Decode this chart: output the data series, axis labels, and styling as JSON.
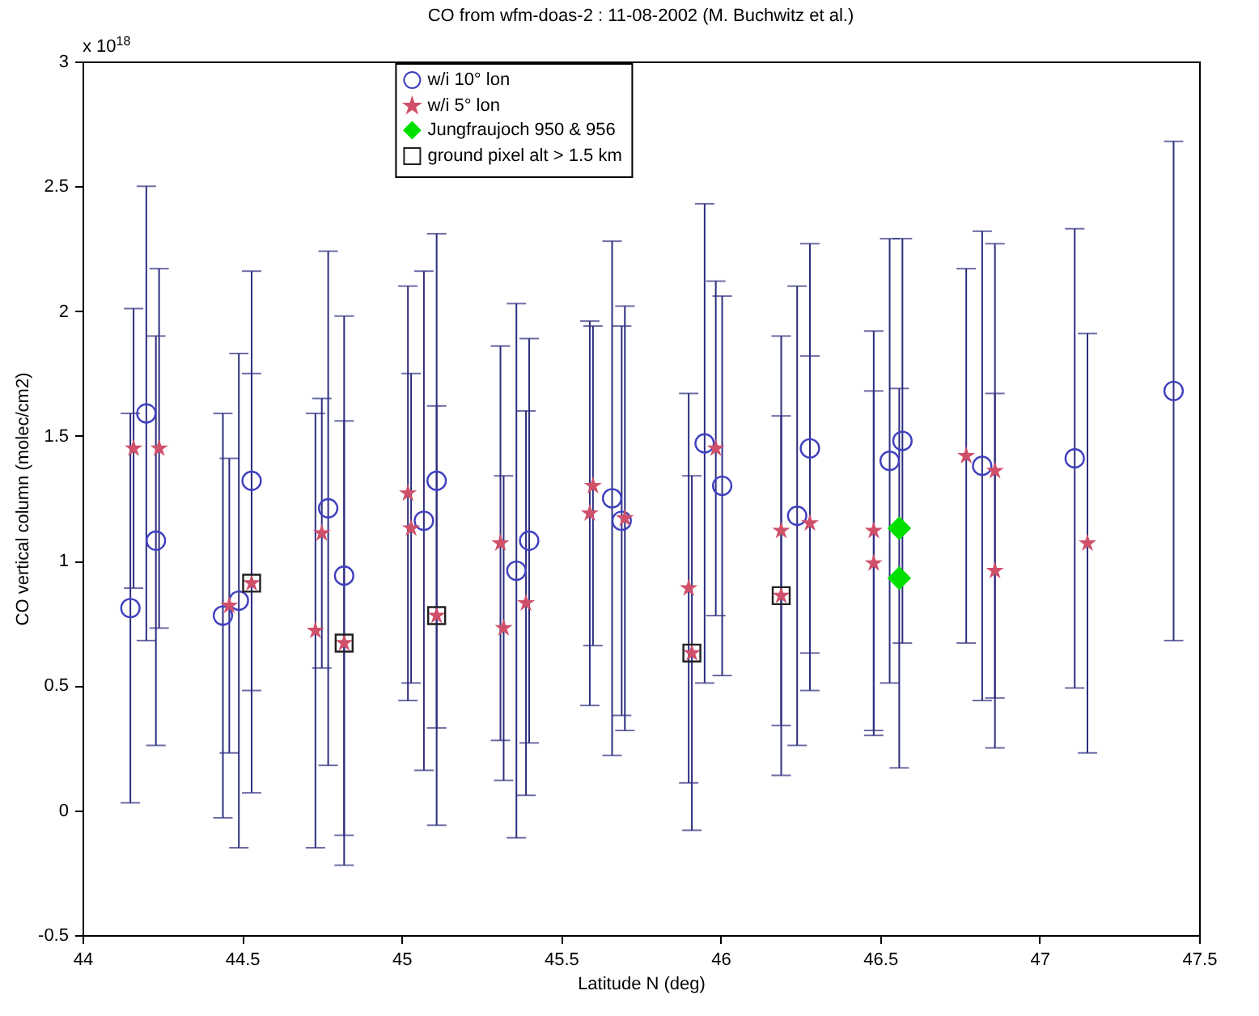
{
  "chart_data": {
    "type": "scatter",
    "title": "CO from wfm-doas-2 : 11-08-2002 (M. Buchwitz et al.)",
    "xlabel": "Latitude N (deg)",
    "ylabel": "CO vertical column (molec/cm2)",
    "annotations": [
      "x 10$^{18}$"
    ],
    "xlim": [
      44,
      47.5
    ],
    "xticks": [
      44,
      44.5,
      45,
      45.5,
      46,
      46.5,
      47,
      47.5
    ],
    "ylim": [
      -0.5,
      3
    ],
    "yticks": [
      -0.5,
      0,
      0.5,
      1,
      1.5,
      2,
      2.5,
      3
    ],
    "grid": false,
    "legend": "top",
    "series": [
      {
        "name": "w/i 10° lon",
        "color": "#4040c0",
        "marker": "circle",
        "x": [
          44.15,
          44.2,
          44.23,
          44.44,
          44.49,
          44.53,
          44.77,
          44.82,
          45.07,
          45.11,
          45.36,
          45.4,
          45.66,
          45.69,
          45.95,
          46.005,
          46.24,
          46.28,
          46.53,
          46.57,
          46.82,
          47.11,
          47.42
        ],
        "values": [
          0.81,
          1.59,
          1.08,
          0.78,
          0.84,
          1.32,
          1.21,
          0.94,
          1.16,
          1.32,
          0.96,
          1.08,
          1.25,
          1.16,
          1.47,
          1.3,
          1.18,
          1.45,
          1.4,
          1.48,
          1.38,
          1.41,
          1.68
        ],
        "errors": [
          0.78,
          0.91,
          0.82,
          0.81,
          0.99,
          0.84,
          1.03,
          1.04,
          1.0,
          0.99,
          1.07,
          0.81,
          1.03,
          0.78,
          0.96,
          0.76,
          0.92,
          0.82,
          0.89,
          0.81,
          0.94,
          0.92,
          1.0
        ]
      },
      {
        "name": "w/i 5° lon",
        "color": "#d0506a",
        "marker": "star",
        "x": [
          44.16,
          44.24,
          44.46,
          44.53,
          44.73,
          44.75,
          44.82,
          45.02,
          45.03,
          45.11,
          45.31,
          45.32,
          45.39,
          45.6,
          45.59,
          45.7,
          45.9,
          45.91,
          45.985,
          46.19,
          46.19,
          46.28,
          46.48,
          46.48,
          46.77,
          46.86,
          46.86,
          47.15
        ],
        "values": [
          1.45,
          1.45,
          0.82,
          0.91,
          0.72,
          1.11,
          0.67,
          1.27,
          1.13,
          0.78,
          1.07,
          0.73,
          0.83,
          1.3,
          1.19,
          1.17,
          0.89,
          0.63,
          1.45,
          1.12,
          0.86,
          1.15,
          1.12,
          0.99,
          1.42,
          1.36,
          0.96,
          1.07
        ],
        "errors": [
          0.56,
          0.72,
          0.59,
          0.84,
          0.87,
          0.54,
          0.89,
          0.83,
          0.62,
          0.84,
          0.79,
          0.61,
          0.77,
          0.64,
          0.77,
          0.85,
          0.78,
          0.71,
          0.67,
          0.78,
          0.72,
          0.67,
          0.8,
          0.69,
          0.75,
          0.91,
          0.71,
          0.84
        ]
      },
      {
        "name": "Jungfraujoch 950 & 956",
        "color": "#00e000",
        "marker": "diamond",
        "x": [
          46.56,
          46.56
        ],
        "values": [
          1.13,
          0.93
        ],
        "errors": [
          null,
          0.76
        ]
      },
      {
        "name": "ground pixel alt > 1.5 km",
        "color": "#202020",
        "marker": "square",
        "x": [
          44.53,
          44.82,
          45.11,
          45.91,
          46.19
        ],
        "values": [
          0.91,
          0.67,
          0.78,
          0.63,
          0.86
        ]
      }
    ]
  }
}
